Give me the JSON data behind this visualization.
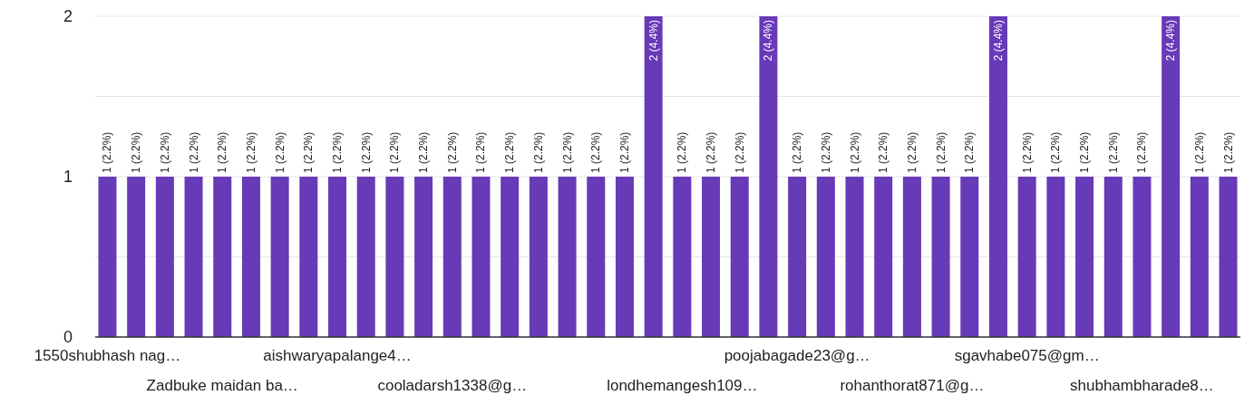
{
  "chart_data": {
    "type": "bar",
    "color": "#673ab7",
    "categories": [
      "1550shubhash nag…",
      null,
      null,
      null,
      "Zadbuke maidan ba…",
      null,
      null,
      null,
      "aishwaryapalange4…",
      null,
      null,
      null,
      "cooladarsh1338@g…",
      null,
      null,
      null,
      null,
      null,
      null,
      null,
      "londhemangesh109…",
      null,
      null,
      null,
      "poojabagade23@g…",
      null,
      null,
      null,
      "rohanthorat871@g…",
      null,
      null,
      null,
      "sgavhabe075@gm…",
      null,
      null,
      null,
      "shubhambharade8…",
      null,
      null,
      null
    ],
    "values": [
      1,
      1,
      1,
      1,
      1,
      1,
      1,
      1,
      1,
      1,
      1,
      1,
      1,
      1,
      1,
      1,
      1,
      1,
      1,
      2,
      1,
      1,
      1,
      2,
      1,
      1,
      1,
      1,
      1,
      1,
      1,
      2,
      1,
      1,
      1,
      1,
      1,
      2,
      1,
      1
    ],
    "value_labels": [
      "1 (2.2%)",
      "1 (2.2%)",
      "1 (2.2%)",
      "1 (2.2%)",
      "1 (2.2%)",
      "1 (2.2%)",
      "1 (2.2%)",
      "1 (2.2%)",
      "1 (2.2%)",
      "1 (2.2%)",
      "1 (2.2%)",
      "1 (2.2%)",
      "1 (2.2%)",
      "1 (2.2%)",
      "1 (2.2%)",
      "1 (2.2%)",
      "1 (2.2%)",
      "1 (2.2%)",
      "1 (2.2%)",
      "2 (4.4%)",
      "1 (2.2%)",
      "1 (2.2%)",
      "1 (2.2%)",
      "2 (4.4%)",
      "1 (2.2%)",
      "1 (2.2%)",
      "1 (2.2%)",
      "1 (2.2%)",
      "1 (2.2%)",
      "1 (2.2%)",
      "1 (2.2%)",
      "2 (4.4%)",
      "1 (2.2%)",
      "1 (2.2%)",
      "1 (2.2%)",
      "1 (2.2%)",
      "1 (2.2%)",
      "2 (4.4%)",
      "1 (2.2%)",
      "1 (2.2%)"
    ],
    "ylim": [
      0,
      2
    ],
    "yticks": [
      0,
      {
        "value": 0.5,
        "label": null
      },
      1,
      {
        "value": 1.5,
        "label": null
      },
      2
    ],
    "grid": true
  }
}
